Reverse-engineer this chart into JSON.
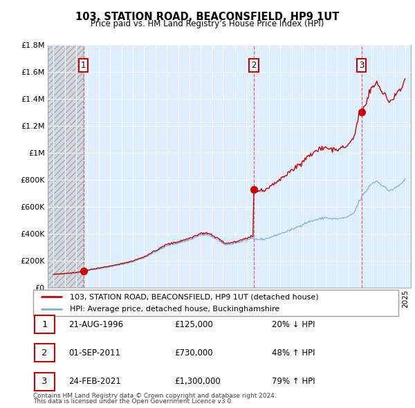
{
  "title": "103, STATION ROAD, BEACONSFIELD, HP9 1UT",
  "subtitle": "Price paid vs. HM Land Registry’s House Price Index (HPI)",
  "legend_line1": "103, STATION ROAD, BEACONSFIELD, HP9 1UT (detached house)",
  "legend_line2": "HPI: Average price, detached house, Buckinghamshire",
  "footer1": "Contains HM Land Registry data © Crown copyright and database right 2024.",
  "footer2": "This data is licensed under the Open Government Licence v3.0.",
  "sale_points": [
    {
      "label": "1",
      "year": 1996.64,
      "price": 125000
    },
    {
      "label": "2",
      "year": 2011.67,
      "price": 730000
    },
    {
      "label": "3",
      "year": 2021.15,
      "price": 1300000
    }
  ],
  "table_rows": [
    {
      "num": "1",
      "date": "21-AUG-1996",
      "price": "£125,000",
      "hpi": "20% ↓ HPI"
    },
    {
      "num": "2",
      "date": "01-SEP-2011",
      "price": "£730,000",
      "hpi": "48% ↑ HPI"
    },
    {
      "num": "3",
      "date": "24-FEB-2021",
      "price": "£1,300,000",
      "hpi": "79% ↑ HPI"
    }
  ],
  "ylim": [
    0,
    1800000
  ],
  "xlim": [
    1993.5,
    2025.5
  ],
  "red_color": "#cc0000",
  "blue_color": "#7ab0d4",
  "chart_bg": "#ddeeff",
  "hatch_color": "#c8c8c8",
  "grid_color": "#ffffff",
  "background_color": "#ffffff",
  "sale_vline_color": "#dd4444"
}
